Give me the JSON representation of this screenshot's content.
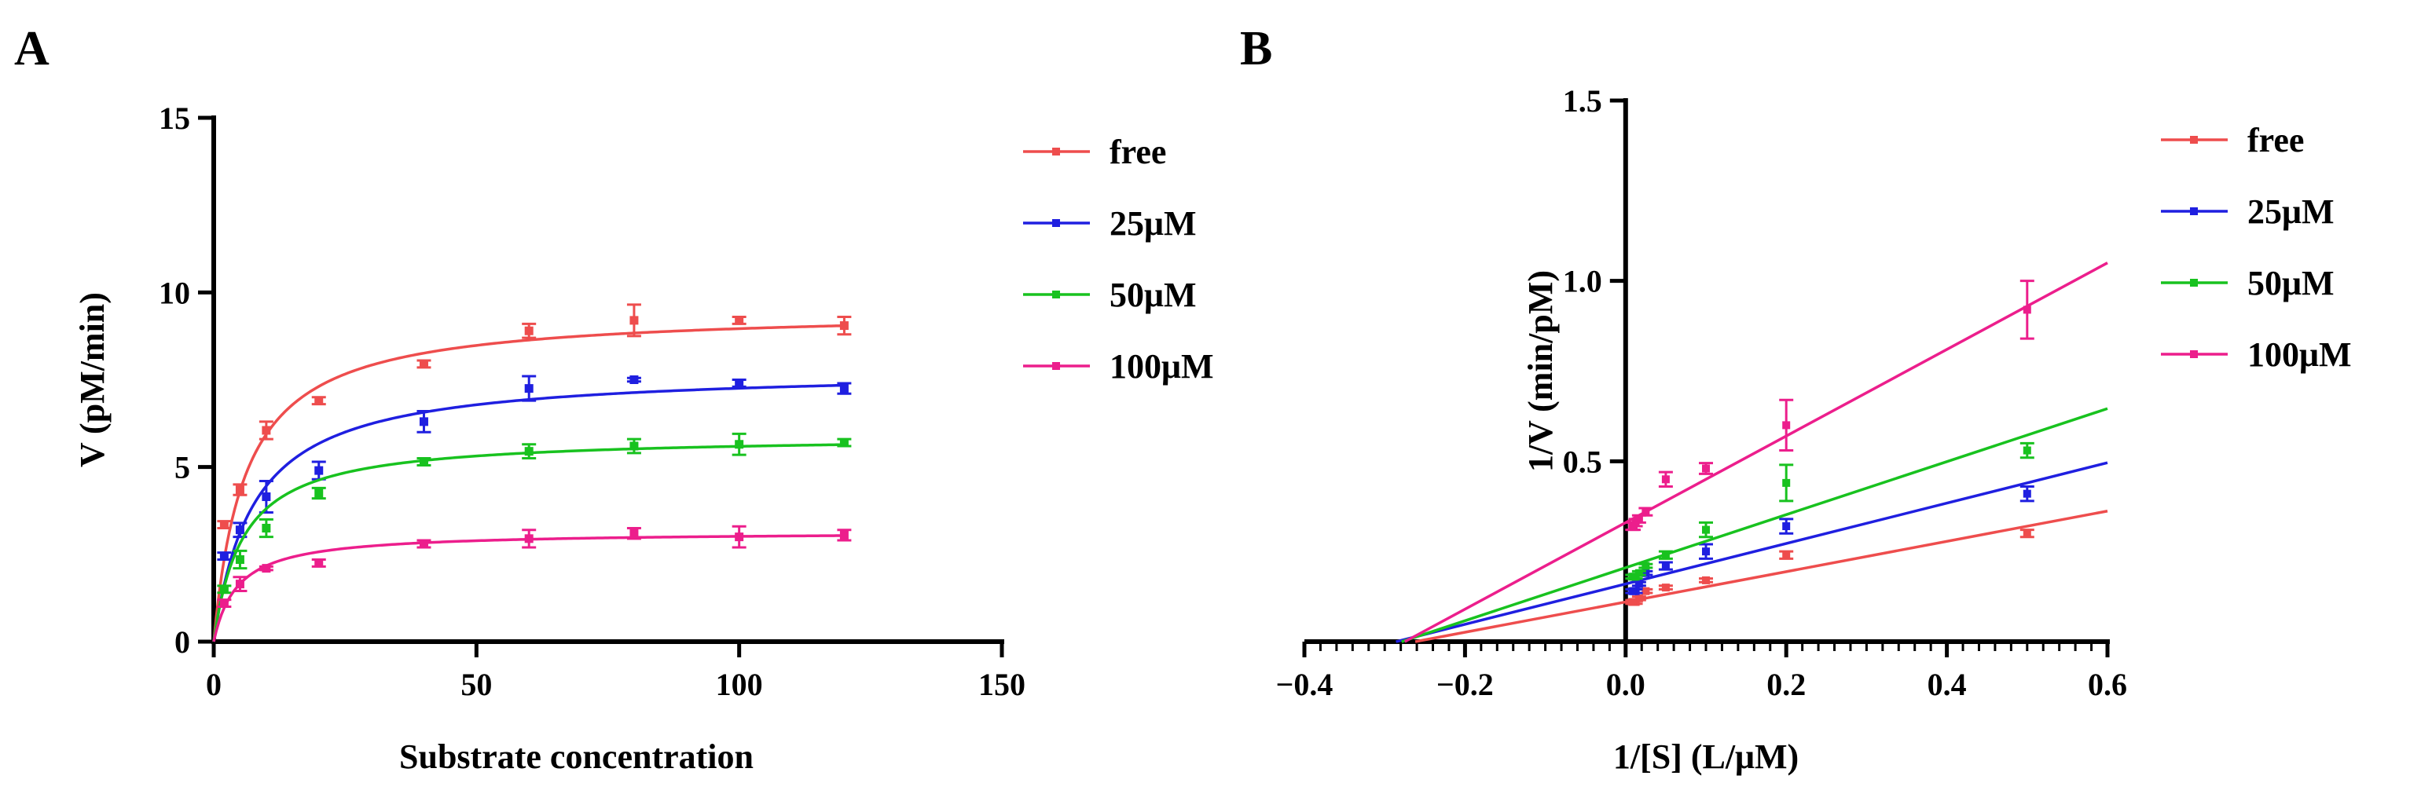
{
  "figure": {
    "panel_a_letter": "A",
    "panel_b_letter": "B"
  },
  "series_colors": {
    "free": "#ee4d4d",
    "25uM": "#1f1fe0",
    "50uM": "#18c21f",
    "100uM": "#ec1e8c"
  },
  "chart_data": [
    {
      "id": "A",
      "type": "scatter",
      "fit": "michaelis-menten",
      "title": "",
      "xlabel": "Substrate concentration",
      "ylabel": "V (pM/min)",
      "xlim": [
        0,
        150
      ],
      "ylim": [
        0,
        15
      ],
      "xticks": [
        0,
        50,
        100,
        150
      ],
      "yticks": [
        0,
        5,
        10,
        15
      ],
      "x_tick_labels": [
        "0",
        "50",
        "100",
        "150"
      ],
      "y_tick_labels": [
        "0",
        "5",
        "10",
        "15"
      ],
      "x": [
        2,
        5,
        10,
        20,
        40,
        60,
        80,
        100,
        120
      ],
      "legend_position": "right",
      "series": [
        {
          "key": "free",
          "name": "free",
          "vmax": 9.5,
          "km": 6.0,
          "y": [
            3.35,
            4.35,
            6.05,
            6.9,
            7.95,
            8.9,
            9.2,
            9.2,
            9.05
          ],
          "err": [
            0.1,
            0.15,
            0.25,
            0.1,
            0.1,
            0.2,
            0.45,
            0.1,
            0.25
          ]
        },
        {
          "key": "25uM",
          "name": "25μM",
          "vmax": 7.8,
          "km": 7.5,
          "y": [
            2.45,
            3.2,
            4.15,
            4.9,
            6.3,
            7.25,
            7.5,
            7.4,
            7.25
          ],
          "err": [
            0.1,
            0.2,
            0.45,
            0.25,
            0.3,
            0.35,
            0.05,
            0.1,
            0.15
          ]
        },
        {
          "key": "50uM",
          "name": "50μM",
          "vmax": 5.9,
          "km": 5.5,
          "y": [
            1.5,
            2.35,
            3.25,
            4.25,
            5.15,
            5.45,
            5.6,
            5.65,
            5.7
          ],
          "err": [
            0.1,
            0.25,
            0.25,
            0.15,
            0.1,
            0.2,
            0.2,
            0.3,
            0.1
          ]
        },
        {
          "key": "100uM",
          "name": "100μM",
          "vmax": 3.15,
          "km": 4.5,
          "y": [
            1.1,
            1.65,
            2.1,
            2.25,
            2.8,
            2.95,
            3.1,
            3.0,
            3.05
          ],
          "err": [
            0.1,
            0.2,
            0.05,
            0.1,
            0.1,
            0.25,
            0.15,
            0.3,
            0.15
          ]
        }
      ]
    },
    {
      "id": "B",
      "type": "scatter",
      "fit": "linear",
      "title": "",
      "xlabel": "1/[S] (L/μM)",
      "ylabel": "1/V (min/pM)",
      "xlim": [
        -0.4,
        0.6
      ],
      "ylim": [
        0,
        1.5
      ],
      "xticks": [
        -0.4,
        -0.2,
        0.0,
        0.2,
        0.4,
        0.6
      ],
      "yticks": [
        0.5,
        1.0,
        1.5
      ],
      "x_tick_labels": [
        "−0.4",
        "−0.2",
        "0.0",
        "0.2",
        "0.4",
        "0.6"
      ],
      "y_tick_labels": [
        "0.5",
        "1.0",
        "1.5"
      ],
      "x_minor_step": 0.02,
      "x": [
        0.5,
        0.2,
        0.1,
        0.05,
        0.025,
        0.0167,
        0.0125,
        0.01,
        0.0083
      ],
      "legend_position": "right",
      "series": [
        {
          "key": "free",
          "name": "free",
          "slope": 0.42,
          "intercept": 0.11,
          "line_range": [
            -0.262,
            0.6
          ],
          "y": [
            0.3,
            0.24,
            0.17,
            0.15,
            0.14,
            0.12,
            0.11,
            0.11,
            0.11
          ],
          "err": [
            0.01,
            0.01,
            0.005,
            0.005,
            0.005,
            0.005,
            0.005,
            0.005,
            0.005
          ]
        },
        {
          "key": "25uM",
          "name": "25μM",
          "slope": 0.56,
          "intercept": 0.16,
          "line_range": [
            -0.286,
            0.6
          ],
          "y": [
            0.41,
            0.32,
            0.25,
            0.21,
            0.19,
            0.16,
            0.14,
            0.14,
            0.14
          ],
          "err": [
            0.02,
            0.02,
            0.02,
            0.01,
            0.005,
            0.005,
            0.005,
            0.005,
            0.005
          ]
        },
        {
          "key": "50uM",
          "name": "50μM",
          "slope": 0.735,
          "intercept": 0.205,
          "line_range": [
            -0.279,
            0.6
          ],
          "y": [
            0.53,
            0.44,
            0.31,
            0.24,
            0.21,
            0.19,
            0.18,
            0.18,
            0.18
          ],
          "err": [
            0.02,
            0.05,
            0.02,
            0.01,
            0.005,
            0.005,
            0.005,
            0.005,
            0.005
          ]
        },
        {
          "key": "100uM",
          "name": "100μM",
          "slope": 1.2,
          "intercept": 0.33,
          "line_range": [
            -0.275,
            0.6
          ],
          "y": [
            0.92,
            0.6,
            0.48,
            0.45,
            0.36,
            0.34,
            0.33,
            0.32,
            0.32
          ],
          "err": [
            0.08,
            0.07,
            0.015,
            0.02,
            0.01,
            0.01,
            0.01,
            0.01,
            0.01
          ]
        }
      ]
    }
  ]
}
